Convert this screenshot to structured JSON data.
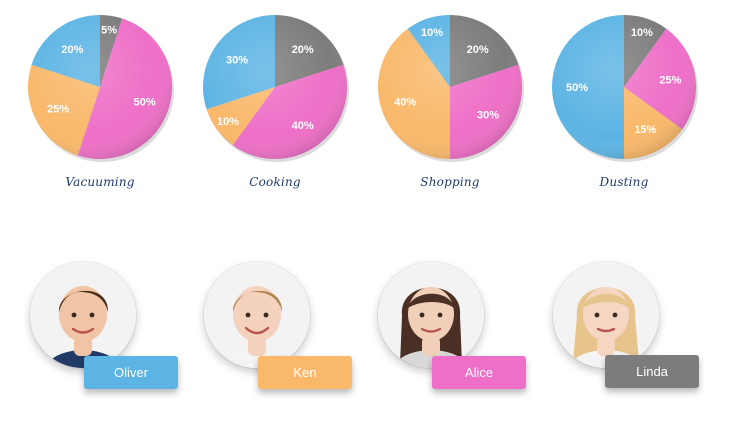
{
  "palette": {
    "Oliver": "#5cb4e4",
    "Ken": "#f9b86a",
    "Alice": "#ee6fc7",
    "Linda": "#7c7c7c"
  },
  "chart_data": [
    {
      "type": "pie",
      "title": "Vacuuming",
      "slices": [
        {
          "name": "Linda",
          "value": 5
        },
        {
          "name": "Alice",
          "value": 50
        },
        {
          "name": "Ken",
          "value": 25
        },
        {
          "name": "Oliver",
          "value": 20
        }
      ]
    },
    {
      "type": "pie",
      "title": "Cooking",
      "slices": [
        {
          "name": "Linda",
          "value": 20
        },
        {
          "name": "Alice",
          "value": 40
        },
        {
          "name": "Ken",
          "value": 10
        },
        {
          "name": "Oliver",
          "value": 30
        }
      ]
    },
    {
      "type": "pie",
      "title": "Shopping",
      "slices": [
        {
          "name": "Linda",
          "value": 20
        },
        {
          "name": "Alice",
          "value": 30
        },
        {
          "name": "Ken",
          "value": 40
        },
        {
          "name": "Oliver",
          "value": 10
        }
      ]
    },
    {
      "type": "pie",
      "title": "Dusting",
      "slices": [
        {
          "name": "Linda",
          "value": 10
        },
        {
          "name": "Alice",
          "value": 25
        },
        {
          "name": "Ken",
          "value": 15
        },
        {
          "name": "Oliver",
          "value": 50
        }
      ]
    }
  ],
  "people": [
    {
      "name": "Oliver",
      "tag_color": "#5cb4e4",
      "hair": "#4a2e1d",
      "skin": "#f0c4a4",
      "shirt": "#223a66"
    },
    {
      "name": "Ken",
      "tag_color": "#f9b86a",
      "hair": "#b08550",
      "skin": "#f5d2bd",
      "shirt": "#f4f4f4"
    },
    {
      "name": "Alice",
      "tag_color": "#ee6fc7",
      "hair": "#4a3024",
      "skin": "#f1cfb8",
      "shirt": "#d8d8d8"
    },
    {
      "name": "Linda",
      "tag_color": "#7c7c7c",
      "hair": "#e6c48b",
      "skin": "#f5d6c2",
      "shirt": "#f4f4f4"
    }
  ]
}
